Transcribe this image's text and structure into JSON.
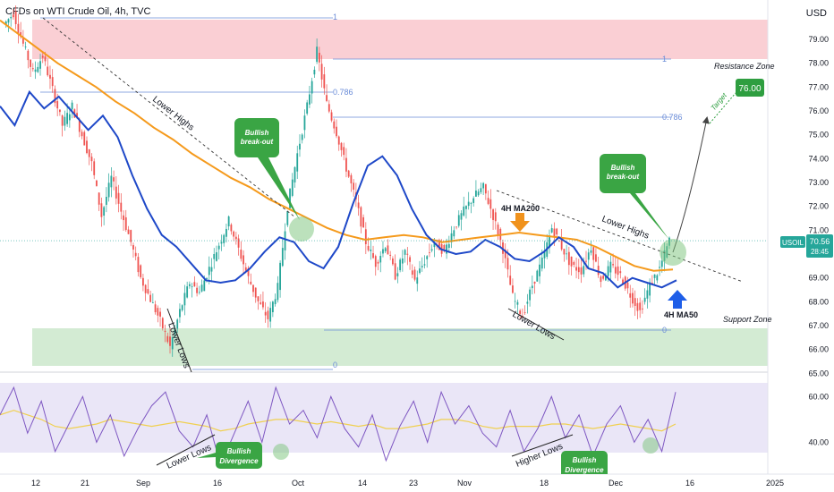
{
  "header": {
    "title": "CFDs on WTI Crude Oil, 4h, TVC",
    "currency": "USD"
  },
  "chart_data": {
    "type": "candlestick",
    "price_axis": {
      "ticks": [
        "65.00",
        "66.00",
        "67.00",
        "68.00",
        "69.00",
        "70.00",
        "71.00",
        "72.00",
        "73.00",
        "74.00",
        "75.00",
        "76.00",
        "77.00",
        "78.00",
        "79.00"
      ],
      "ylim": [
        64.9,
        80.2
      ]
    },
    "rsi_axis": {
      "ticks": [
        "40.00",
        "60.00"
      ],
      "ylim": [
        30,
        66
      ]
    },
    "time_axis": {
      "ticks": [
        "12",
        "21",
        "Sep",
        "16",
        "Oct",
        "14",
        "23",
        "Nov",
        "18",
        "Dec",
        "16",
        "2025"
      ]
    },
    "last_price": {
      "symbol": "USOIL",
      "value": "70.56",
      "countdown": "28:45",
      "value_num": 70.56
    },
    "price_line": [
      79.6,
      80.1,
      78.8,
      77.6,
      78.3,
      76.9,
      75.4,
      76.2,
      75.0,
      73.8,
      71.6,
      73.2,
      71.8,
      70.5,
      69.0,
      68.1,
      67.2,
      66.1,
      67.6,
      68.8,
      68.4,
      69.4,
      70.4,
      71.4,
      70.2,
      69.0,
      68.0,
      67.3,
      68.6,
      72.0,
      74.2,
      76.2,
      78.5,
      76.3,
      75.1,
      73.6,
      72.2,
      70.5,
      69.6,
      70.4,
      69.1,
      70.1,
      68.9,
      69.7,
      70.5,
      70.1,
      71.1,
      71.8,
      72.4,
      72.8,
      71.6,
      70.2,
      68.2,
      67.4,
      68.7,
      69.7,
      71.1,
      70.3,
      69.5,
      69.3,
      70.3,
      68.9,
      69.5,
      69.1,
      68.3,
      67.6,
      68.7,
      69.4,
      70.56
    ],
    "ma50": [
      76.2,
      75.4,
      76.8,
      76.1,
      76.6,
      75.9,
      75.2,
      75.8,
      74.9,
      73.3,
      71.9,
      70.8,
      70.3,
      69.6,
      68.9,
      68.8,
      68.9,
      69.4,
      70.1,
      70.7,
      70.5,
      69.7,
      69.4,
      70.3,
      72.1,
      73.7,
      74.1,
      73.3,
      71.9,
      70.8,
      70.2,
      70.0,
      70.1,
      70.6,
      70.3,
      69.8,
      69.7,
      70.1,
      70.7,
      70.3,
      69.4,
      69.2,
      68.6,
      69.0,
      68.8,
      68.6,
      68.9
    ],
    "ma200": [
      79.8,
      79.2,
      78.6,
      78.0,
      77.5,
      77.0,
      76.4,
      75.9,
      75.3,
      74.8,
      74.2,
      73.7,
      73.2,
      72.8,
      72.3,
      71.9,
      71.5,
      71.1,
      70.8,
      70.6,
      70.7,
      70.8,
      70.7,
      70.5,
      70.6,
      70.7,
      70.8,
      70.9,
      70.8,
      70.7,
      70.6,
      70.3,
      69.9,
      69.5,
      69.3,
      69.35
    ],
    "rsi": [
      52,
      64,
      44,
      58,
      36,
      48,
      60,
      40,
      52,
      34,
      46,
      56,
      62,
      45,
      38,
      52,
      30,
      44,
      58,
      40,
      64,
      48,
      54,
      42,
      60,
      46,
      38,
      52,
      32,
      47,
      58,
      40,
      62,
      48,
      56,
      44,
      38,
      54,
      36,
      46,
      60,
      42,
      52,
      34,
      48,
      56,
      40,
      50,
      36,
      62
    ],
    "rsi_ma": [
      52,
      54,
      52,
      50,
      47,
      46,
      47,
      48,
      50,
      49,
      48,
      47,
      48,
      49,
      48,
      47,
      45,
      46,
      48,
      49,
      50,
      50,
      49,
      48,
      49,
      48,
      47,
      48,
      46,
      46,
      47,
      48,
      50,
      50,
      49,
      47,
      46,
      47,
      47,
      47,
      48,
      48,
      47,
      46,
      47,
      48,
      47,
      46,
      45,
      48
    ]
  },
  "annotations": {
    "lower_highs_1": "Lower Highs",
    "lower_highs_2": "Lower Highs",
    "lower_lows_1": "Lower Lows",
    "lower_lows_2": "Lower Lows",
    "lower_lows_rsi": "Lower Lows",
    "higher_lows": "Higher Lows",
    "bullish_breakout": [
      "Bullish",
      "break-out"
    ],
    "bullish_divergence": [
      "Bullish",
      "Divergence"
    ],
    "ma200_label": "4H MA200",
    "ma50_label": "4H MA50",
    "resistance": "Resistance Zone",
    "support": "Support Zone",
    "target_label": "Target",
    "target_value": "76.00",
    "fib": {
      "one": "1",
      "zero": "0",
      "r786": "0.786"
    }
  },
  "colors": {
    "resistance": "#f5a8b0",
    "support": "#a8d8a8",
    "rsi_band": "#d9d2f0",
    "rsi": "#7e57c2",
    "rsi_ma": "#f0d050",
    "ma50": "#1e48c8",
    "ma200": "#f59a1c",
    "callout": "#3aa544",
    "fib": "#6a8cd8",
    "price_up": "#26a69a",
    "price_down": "#ef5350",
    "target": "#2e9e40"
  }
}
